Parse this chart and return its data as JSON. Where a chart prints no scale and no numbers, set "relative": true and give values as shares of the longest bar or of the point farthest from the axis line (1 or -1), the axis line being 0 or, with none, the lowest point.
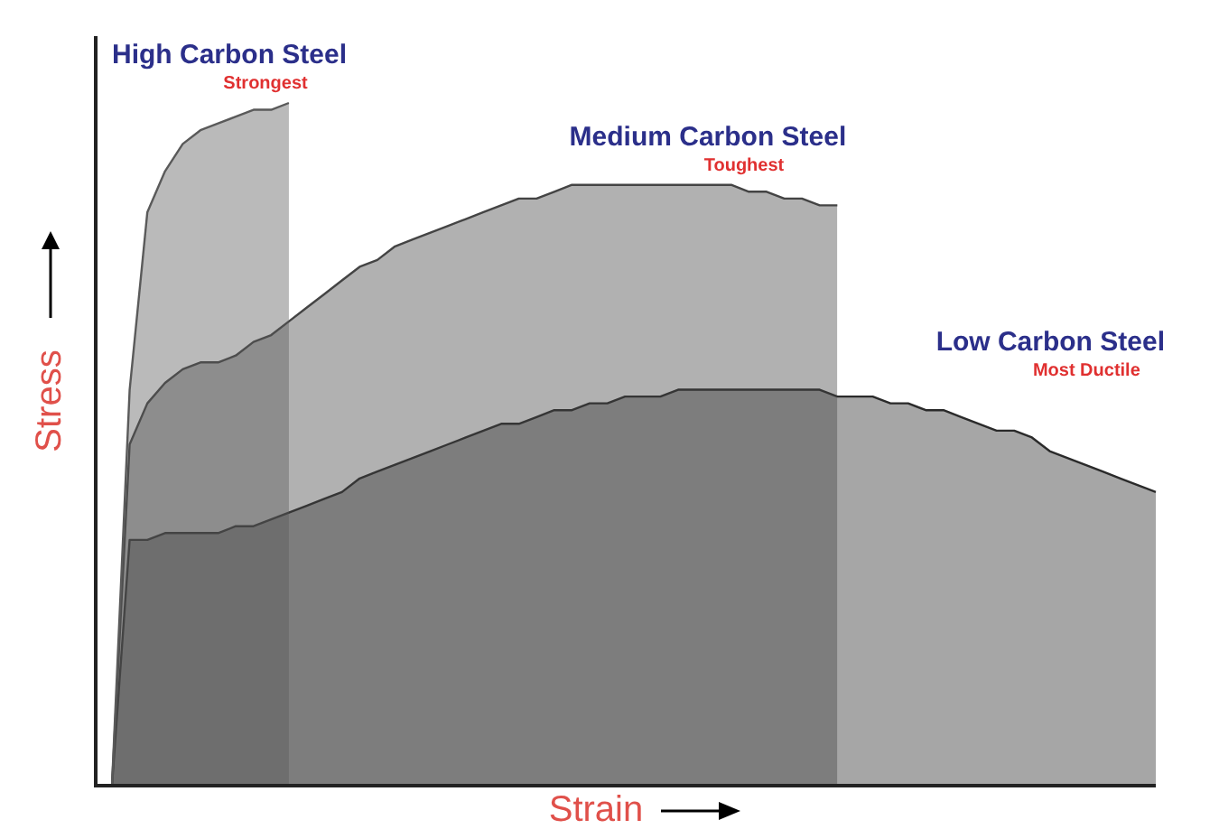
{
  "chart_data": {
    "type": "area",
    "relative": true,
    "xlabel": "Strain",
    "ylabel": "Stress",
    "legend": false,
    "categories": [
      null,
      null,
      null,
      null,
      null,
      null,
      null,
      null,
      null,
      null,
      null,
      null,
      null,
      null,
      null,
      null,
      null,
      null,
      null,
      null,
      null,
      null,
      null,
      null,
      null,
      null,
      null,
      null,
      null,
      null,
      null,
      null,
      null,
      null,
      null,
      null,
      null,
      null,
      null,
      null,
      null,
      null,
      null,
      null,
      null,
      null,
      null,
      null,
      null,
      null,
      null,
      null,
      null,
      null,
      null,
      null,
      null,
      null,
      null,
      null
    ],
    "series": [
      {
        "name": "High Carbon Steel",
        "color": "#5a5a5a",
        "values": [
          0,
          0.58,
          0.84,
          0.9,
          0.94,
          0.96,
          0.97,
          0.98,
          0.99,
          0.99,
          1,
          null,
          null,
          null,
          null,
          null,
          null,
          null,
          null,
          null,
          null,
          null,
          null,
          null,
          null,
          null,
          null,
          null,
          null,
          null,
          null,
          null,
          null,
          null,
          null,
          null,
          null,
          null,
          null,
          null,
          null,
          null,
          null,
          null,
          null,
          null,
          null,
          null,
          null,
          null,
          null,
          null,
          null,
          null,
          null,
          null,
          null,
          null,
          null,
          null
        ]
      },
      {
        "name": "Medium Carbon Steel",
        "color": "#444444",
        "values": [
          0,
          0.5,
          0.56,
          0.59,
          0.61,
          0.62,
          0.62,
          0.63,
          0.65,
          0.66,
          0.68,
          0.7,
          0.72,
          0.74,
          0.76,
          0.77,
          0.79,
          0.8,
          0.81,
          0.82,
          0.83,
          0.84,
          0.85,
          0.86,
          0.86,
          0.87,
          0.88,
          0.88,
          0.88,
          0.88,
          0.88,
          0.88,
          0.88,
          0.88,
          0.88,
          0.88,
          0.87,
          0.87,
          0.86,
          0.86,
          0.85,
          0.85,
          null,
          null,
          null,
          null,
          null,
          null,
          null,
          null,
          null,
          null,
          null,
          null,
          null,
          null,
          null,
          null,
          null,
          null
        ]
      },
      {
        "name": "Low Carbon Steel",
        "color": "#2a2a2a",
        "values": [
          0,
          0.36,
          0.36,
          0.37,
          0.37,
          0.37,
          0.37,
          0.38,
          0.38,
          0.39,
          0.4,
          0.41,
          0.42,
          0.43,
          0.45,
          0.46,
          0.47,
          0.48,
          0.49,
          0.5,
          0.51,
          0.52,
          0.53,
          0.53,
          0.54,
          0.55,
          0.55,
          0.56,
          0.56,
          0.57,
          0.57,
          0.57,
          0.58,
          0.58,
          0.58,
          0.58,
          0.58,
          0.58,
          0.58,
          0.58,
          0.58,
          0.57,
          0.57,
          0.57,
          0.56,
          0.56,
          0.55,
          0.55,
          0.54,
          0.53,
          0.52,
          0.52,
          0.51,
          0.49,
          0.48,
          0.47,
          0.46,
          0.45,
          0.44,
          0.43
        ]
      }
    ],
    "annotations": [
      "Strongest",
      "Toughest",
      "Most Ductile"
    ]
  }
}
